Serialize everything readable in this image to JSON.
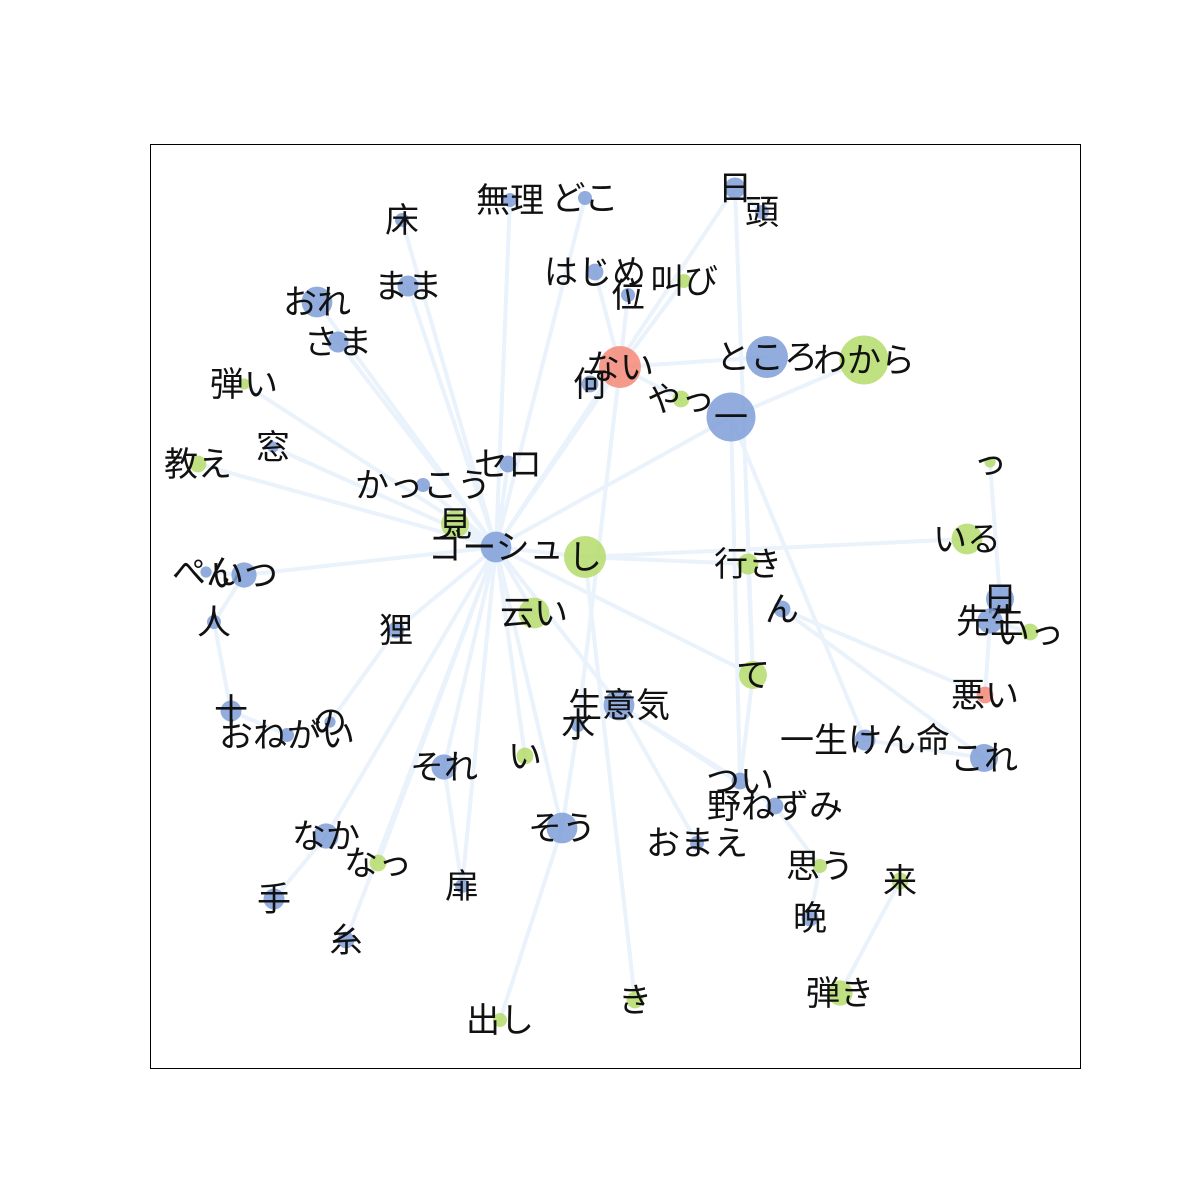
{
  "colors": {
    "noun": "#7f9fd7",
    "verb": "#b5dc6b",
    "adjective": "#f58a78",
    "edge": "#eaf2fb",
    "frame": "#000000"
  },
  "nodes": [
    {
      "id": "mu",
      "label": "無理",
      "pos": "noun",
      "size": 1
    },
    {
      "id": "doko",
      "label": "どこ",
      "pos": "noun",
      "size": 1
    },
    {
      "id": "hi",
      "label": "日",
      "pos": "noun",
      "size": 1.5
    },
    {
      "id": "atama",
      "label": "頭",
      "pos": "noun",
      "size": 1
    },
    {
      "id": "yuka",
      "label": "床",
      "pos": "noun",
      "size": 1
    },
    {
      "id": "hajime",
      "label": "はじめ",
      "pos": "noun",
      "size": 1.2
    },
    {
      "id": "sakebi",
      "label": "叫び",
      "pos": "verb",
      "size": 1
    },
    {
      "id": "kurai",
      "label": "位",
      "pos": "noun",
      "size": 1
    },
    {
      "id": "mama",
      "label": "まま",
      "pos": "noun",
      "size": 1.5
    },
    {
      "id": "ore",
      "label": "おれ",
      "pos": "noun",
      "size": 2.2
    },
    {
      "id": "sama",
      "label": "さま",
      "pos": "noun",
      "size": 1.5
    },
    {
      "id": "nai",
      "label": "ない",
      "pos": "adjective",
      "size": 3
    },
    {
      "id": "tokoro",
      "label": "ところ",
      "pos": "noun",
      "size": 3
    },
    {
      "id": "wakara",
      "label": "わから",
      "pos": "verb",
      "size": 3.5
    },
    {
      "id": "nani",
      "label": "何",
      "pos": "noun",
      "size": 1.2
    },
    {
      "id": "yatsu",
      "label": "やっ",
      "pos": "verb",
      "size": 1.2
    },
    {
      "id": "ichi",
      "label": "一",
      "pos": "noun",
      "size": 3.5
    },
    {
      "id": "hikii",
      "label": "弾い",
      "pos": "verb",
      "size": 0.8
    },
    {
      "id": "oshie",
      "label": "教え",
      "pos": "verb",
      "size": 1.2
    },
    {
      "id": "mado",
      "label": "窓",
      "pos": "noun",
      "size": 0.8
    },
    {
      "id": "sero",
      "label": "セロ",
      "pos": "noun",
      "size": 1.2
    },
    {
      "id": "kakkou",
      "label": "かっこう",
      "pos": "noun",
      "size": 1
    },
    {
      "id": "tsu",
      "label": "っ",
      "pos": "verb",
      "size": 0.8
    },
    {
      "id": "mi",
      "label": "見",
      "pos": "verb",
      "size": 2
    },
    {
      "id": "gooshu",
      "label": "ゴーシュ",
      "pos": "noun",
      "size": 2.2
    },
    {
      "id": "shi",
      "label": "し",
      "pos": "verb",
      "size": 3
    },
    {
      "id": "iru",
      "label": "いる",
      "pos": "verb",
      "size": 2.2
    },
    {
      "id": "pen",
      "label": "ぺん",
      "pos": "noun",
      "size": 0.8
    },
    {
      "id": "itsu",
      "label": "いつ",
      "pos": "noun",
      "size": 1.8
    },
    {
      "id": "iki",
      "label": "行き",
      "pos": "verb",
      "size": 1.5
    },
    {
      "id": "nichi2",
      "label": "日",
      "pos": "noun",
      "size": 2
    },
    {
      "id": "hito",
      "label": "人",
      "pos": "noun",
      "size": 1
    },
    {
      "id": "n",
      "label": "ん",
      "pos": "noun",
      "size": 1.2
    },
    {
      "id": "sensei",
      "label": "先生",
      "pos": "noun",
      "size": 1.8
    },
    {
      "id": "itsu2",
      "label": "いっ",
      "pos": "verb",
      "size": 1.2
    },
    {
      "id": "ii",
      "label": "云い",
      "pos": "verb",
      "size": 2.2
    },
    {
      "id": "tanuki",
      "label": "狸",
      "pos": "noun",
      "size": 1.2
    },
    {
      "id": "te",
      "label": "て",
      "pos": "verb",
      "size": 2
    },
    {
      "id": "warui",
      "label": "悪い",
      "pos": "adjective",
      "size": 1.2
    },
    {
      "id": "juu",
      "label": "十",
      "pos": "noun",
      "size": 1.5
    },
    {
      "id": "no",
      "label": "の",
      "pos": "noun",
      "size": 0.8
    },
    {
      "id": "onegai",
      "label": "おねがい",
      "pos": "noun",
      "size": 1
    },
    {
      "id": "namaiki",
      "label": "生意気",
      "pos": "noun",
      "size": 2.2
    },
    {
      "id": "mizu",
      "label": "水",
      "pos": "noun",
      "size": 1
    },
    {
      "id": "isshoukenmei",
      "label": "一生けん命",
      "pos": "noun",
      "size": 1.5
    },
    {
      "id": "kore",
      "label": "これ",
      "pos": "noun",
      "size": 2
    },
    {
      "id": "sore",
      "label": "それ",
      "pos": "noun",
      "size": 1.8
    },
    {
      "id": "i",
      "label": "い",
      "pos": "verb",
      "size": 1.2
    },
    {
      "id": "tsui",
      "label": "つい",
      "pos": "noun",
      "size": 1.2
    },
    {
      "id": "nonezumi",
      "label": "野ねずみ",
      "pos": "noun",
      "size": 1.2
    },
    {
      "id": "naka",
      "label": "なか",
      "pos": "noun",
      "size": 1.8
    },
    {
      "id": "sou",
      "label": "そう",
      "pos": "noun",
      "size": 2.2
    },
    {
      "id": "omae",
      "label": "おまえ",
      "pos": "noun",
      "size": 1
    },
    {
      "id": "natsu",
      "label": "なっ",
      "pos": "verb",
      "size": 1.2
    },
    {
      "id": "omou",
      "label": "思う",
      "pos": "verb",
      "size": 1
    },
    {
      "id": "kuru",
      "label": "来",
      "pos": "verb",
      "size": 1.2
    },
    {
      "id": "te2",
      "label": "手",
      "pos": "noun",
      "size": 1.5
    },
    {
      "id": "tobira",
      "label": "扉",
      "pos": "noun",
      "size": 1
    },
    {
      "id": "ban",
      "label": "晩",
      "pos": "noun",
      "size": 1.2
    },
    {
      "id": "ito",
      "label": "糸",
      "pos": "noun",
      "size": 1.2
    },
    {
      "id": "hikiki",
      "label": "弾き",
      "pos": "verb",
      "size": 1.8
    },
    {
      "id": "ki",
      "label": "き",
      "pos": "verb",
      "size": 1.2
    },
    {
      "id": "dashi",
      "label": "出し",
      "pos": "verb",
      "size": 1
    }
  ],
  "edges": [
    [
      "gooshu",
      "mu"
    ],
    [
      "gooshu",
      "doko"
    ],
    [
      "gooshu",
      "hi"
    ],
    [
      "gooshu",
      "yuka"
    ],
    [
      "gooshu",
      "mama"
    ],
    [
      "gooshu",
      "ore"
    ],
    [
      "gooshu",
      "sama"
    ],
    [
      "gooshu",
      "nai"
    ],
    [
      "gooshu",
      "ichi"
    ],
    [
      "gooshu",
      "kakkou"
    ],
    [
      "gooshu",
      "sero"
    ],
    [
      "gooshu",
      "mi"
    ],
    [
      "gooshu",
      "shi"
    ],
    [
      "gooshu",
      "itsu"
    ],
    [
      "gooshu",
      "oshie"
    ],
    [
      "gooshu",
      "mado"
    ],
    [
      "gooshu",
      "tanuki"
    ],
    [
      "gooshu",
      "ii"
    ],
    [
      "gooshu",
      "sore"
    ],
    [
      "gooshu",
      "naka"
    ],
    [
      "gooshu",
      "natsu"
    ],
    [
      "gooshu",
      "sou"
    ],
    [
      "gooshu",
      "namaiki"
    ],
    [
      "gooshu",
      "te"
    ],
    [
      "gooshu",
      "tobira"
    ],
    [
      "gooshu",
      "ito"
    ],
    [
      "gooshu",
      "hikii"
    ],
    [
      "gooshu",
      "i"
    ],
    [
      "nai",
      "hajime"
    ],
    [
      "nai",
      "nani"
    ],
    [
      "nai",
      "tokoro"
    ],
    [
      "nai",
      "yatsu"
    ],
    [
      "nai",
      "mizu"
    ],
    [
      "nai",
      "sakebi"
    ],
    [
      "nai",
      "kurai"
    ],
    [
      "ichi",
      "isshoukenmei"
    ],
    [
      "ichi",
      "wakara"
    ],
    [
      "ichi",
      "tsui"
    ],
    [
      "shi",
      "iru"
    ],
    [
      "shi",
      "iki"
    ],
    [
      "shi",
      "ki"
    ],
    [
      "hi",
      "atama"
    ],
    [
      "hi",
      "te"
    ],
    [
      "iki",
      "te"
    ],
    [
      "n",
      "warui"
    ],
    [
      "n",
      "kore"
    ],
    [
      "sensei",
      "itsu2"
    ],
    [
      "sensei",
      "nichi2"
    ],
    [
      "tsu",
      "nichi2"
    ],
    [
      "warui",
      "sensei"
    ],
    [
      "itsu",
      "pen"
    ],
    [
      "itsu",
      "hito"
    ],
    [
      "hito",
      "juu"
    ],
    [
      "juu",
      "onegai"
    ],
    [
      "namaiki",
      "omae"
    ],
    [
      "namaiki",
      "nonezumi"
    ],
    [
      "namaiki",
      "tsui"
    ],
    [
      "te",
      "tsui"
    ],
    [
      "nonezumi",
      "omou"
    ],
    [
      "omou",
      "ban"
    ],
    [
      "kuru",
      "hikiki"
    ],
    [
      "naka",
      "te2"
    ],
    [
      "sou",
      "dashi"
    ],
    [
      "sou",
      "mizu"
    ],
    [
      "isshoukenmei",
      "kore"
    ],
    [
      "tanuki",
      "no"
    ],
    [
      "sore",
      "tobira"
    ]
  ]
}
